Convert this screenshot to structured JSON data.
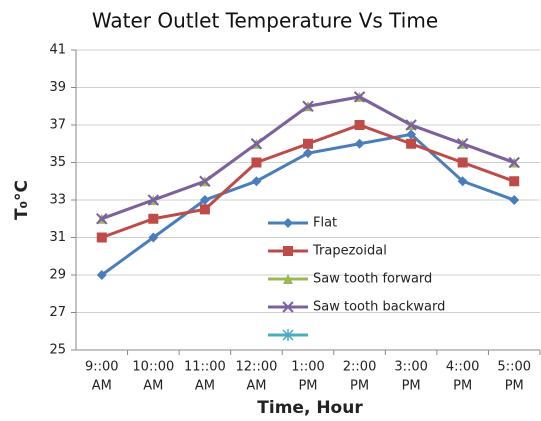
{
  "chart_data": {
    "type": "line",
    "title": "Water Outlet Temperature Vs Time",
    "x_label": "Time, Hour",
    "y_label": "T₀°C",
    "categories": [
      [
        "9::00",
        "AM"
      ],
      [
        "10::00",
        "AM"
      ],
      [
        "11::00",
        "AM"
      ],
      [
        "12::00",
        "AM"
      ],
      [
        "1::00",
        "PM"
      ],
      [
        "2::00",
        "PM"
      ],
      [
        "3::00",
        "PM"
      ],
      [
        "4::00",
        "PM"
      ],
      [
        "5::00",
        "PM"
      ]
    ],
    "series": [
      {
        "name": "Flat",
        "color": "#4a7ebb",
        "marker": "diamond",
        "values": [
          29,
          31,
          33,
          34,
          35.5,
          36,
          36.5,
          34,
          33
        ]
      },
      {
        "name": "Trapezoidal",
        "color": "#be4b48",
        "marker": "square",
        "values": [
          31,
          32,
          32.5,
          35,
          36,
          37,
          36,
          35,
          34
        ]
      },
      {
        "name": "Saw tooth forward",
        "color": "#98b954",
        "marker": "triangle",
        "values": [
          32,
          33,
          34,
          36,
          38,
          38.5,
          37,
          36,
          35
        ]
      },
      {
        "name": "Saw tooth backward",
        "color": "#7d60a0",
        "marker": "x",
        "values": [
          32,
          33,
          34,
          36,
          38,
          38.5,
          37,
          36,
          35
        ]
      },
      {
        "color": "#4bacc6",
        "marker": "star",
        "values": [
          null,
          null,
          null,
          null,
          null,
          null,
          null,
          null,
          null
        ]
      }
    ],
    "ylim": [
      25,
      41
    ],
    "yticks": [
      25,
      27,
      29,
      31,
      33,
      35,
      37,
      39,
      41
    ],
    "grid": true
  }
}
